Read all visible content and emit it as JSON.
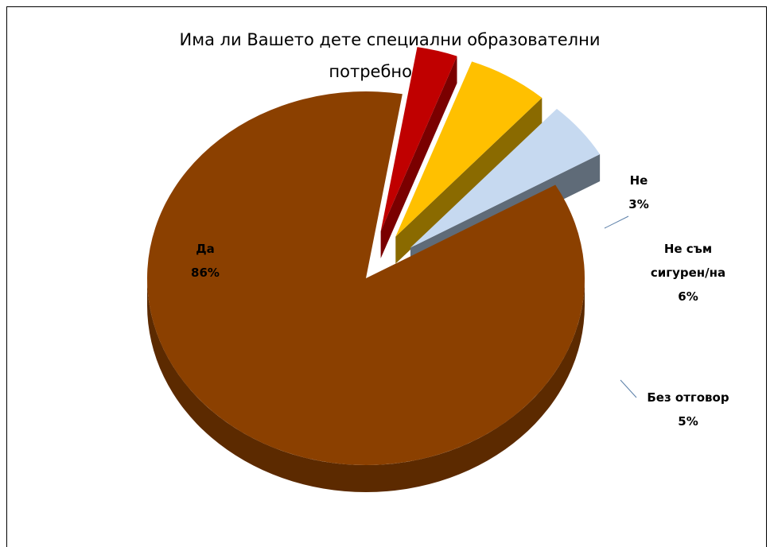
{
  "chart_data": {
    "type": "pie",
    "title_lines": [
      "Има ли Вашето дете специални образователни",
      "потребности?"
    ],
    "slices": [
      {
        "name": "Да",
        "value": 86,
        "label": "86%",
        "color": "#8B4000",
        "side": "#5C2A00",
        "name_lines": [
          "Да"
        ],
        "exploded": false
      },
      {
        "name": "Не",
        "value": 3,
        "label": "3%",
        "color": "#C00000",
        "side": "#7A0000",
        "name_lines": [
          "Не"
        ],
        "exploded": true
      },
      {
        "name": "Не съм сигурен/на",
        "value": 6,
        "label": "6%",
        "color": "#FFC000",
        "side": "#8A6A00",
        "name_lines": [
          "Не съм",
          "сигурен/на"
        ],
        "exploded": true
      },
      {
        "name": "Без отговор",
        "value": 5,
        "label": "5%",
        "color": "#C6D9F0",
        "side": "#5F6B78",
        "name_lines": [
          "Без отговор"
        ],
        "exploded": true
      }
    ],
    "legend": "none",
    "style": "3d-exploded"
  }
}
